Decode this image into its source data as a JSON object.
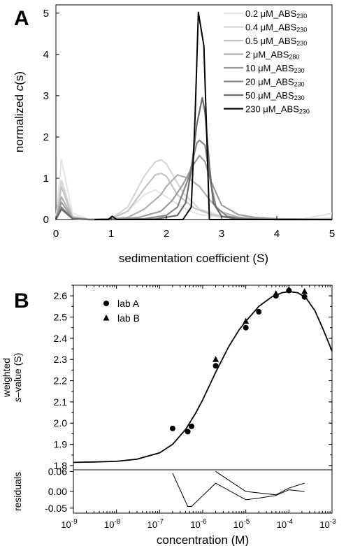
{
  "chart_data": [
    {
      "panel": "A",
      "type": "line",
      "xlabel": "sedimentation coefficient (S)",
      "ylabel_prefix": "normalized ",
      "ylabel_italic": "c",
      "ylabel_suffix": "(s)",
      "xlim": [
        0,
        5
      ],
      "ylim": [
        0,
        5.2
      ],
      "xticks": [
        "0",
        "1",
        "2",
        "3",
        "4",
        "5"
      ],
      "yticks": [
        "0",
        "1",
        "2",
        "3",
        "4",
        "5"
      ],
      "legend_position": "top-right",
      "series": [
        {
          "label_conc": "0.2 μM_ABS",
          "label_sub": "230",
          "color": "#e6e6e6",
          "x": [
            0,
            0.1,
            0.3,
            0.6,
            1.0,
            1.3,
            1.6,
            1.8,
            2.0,
            2.3,
            2.6,
            3.0,
            3.5,
            4.0,
            4.5,
            5.0
          ],
          "y": [
            0,
            1.45,
            0.15,
            0,
            0.02,
            0.2,
            0.6,
            0.72,
            0.55,
            0.28,
            0.12,
            0.05,
            0.02,
            0.01,
            0.02,
            0.15
          ]
        },
        {
          "label_conc": "0.4 μM_ABS",
          "label_sub": "230",
          "color": "#d6d6d6",
          "x": [
            0,
            0.1,
            0.3,
            0.6,
            1.0,
            1.3,
            1.6,
            1.8,
            1.9,
            2.0,
            2.3,
            2.6,
            3.0,
            3.5,
            4.0,
            4.5,
            5.0
          ],
          "y": [
            0,
            0.95,
            0.08,
            0,
            0.02,
            0.3,
            1.05,
            1.4,
            1.45,
            1.35,
            0.65,
            0.25,
            0.08,
            0.02,
            0.01,
            0.01,
            0.03
          ]
        },
        {
          "label_conc": "0.5 μM_ABS",
          "label_sub": "230",
          "color": "#c4c4c4",
          "x": [
            0,
            0.1,
            0.3,
            0.6,
            1.0,
            1.3,
            1.6,
            1.8,
            1.9,
            2.0,
            2.2,
            2.5,
            2.8,
            3.1,
            3.5,
            4.0,
            5.0
          ],
          "y": [
            0,
            0.8,
            0.05,
            0,
            0.02,
            0.2,
            0.75,
            1.08,
            1.12,
            1.05,
            0.6,
            0.28,
            0.12,
            0.04,
            0.02,
            0.01,
            0
          ]
        },
        {
          "label_conc": "2  μM_ABS",
          "label_sub": "280",
          "color": "#b0b0b0",
          "x": [
            0,
            0.1,
            0.3,
            0.6,
            1.0,
            1.3,
            1.6,
            1.9,
            2.0,
            2.2,
            2.4,
            2.6,
            2.8,
            3.0,
            3.3,
            3.6,
            4.0,
            5.0
          ],
          "y": [
            0,
            0.55,
            0.05,
            0,
            0.02,
            0.05,
            0.25,
            0.6,
            0.8,
            1.08,
            1.0,
            0.8,
            0.45,
            0.18,
            0.06,
            0.02,
            0.01,
            0
          ]
        },
        {
          "label_conc": "10  μM_ABS",
          "label_sub": "230",
          "color": "#9c9c9c",
          "x": [
            0,
            0.1,
            0.3,
            0.6,
            1.0,
            1.5,
            1.9,
            2.1,
            2.3,
            2.5,
            2.6,
            2.7,
            2.8,
            3.0,
            3.3,
            3.6,
            4.0,
            5.0
          ],
          "y": [
            0,
            0.42,
            0.03,
            0,
            0,
            0.05,
            0.2,
            0.45,
            0.85,
            1.35,
            1.55,
            1.4,
            0.95,
            0.35,
            0.12,
            0.05,
            0.02,
            0
          ]
        },
        {
          "label_conc": "20  μM_ABS",
          "label_sub": "230",
          "color": "#868686",
          "x": [
            0,
            0.1,
            0.3,
            0.6,
            1.0,
            1.6,
            2.0,
            2.2,
            2.4,
            2.55,
            2.6,
            2.7,
            2.8,
            2.9,
            3.1,
            3.4,
            4.0,
            5.0
          ],
          "y": [
            0,
            0.3,
            0.02,
            0,
            0,
            0.02,
            0.1,
            0.3,
            1.0,
            1.85,
            1.92,
            1.8,
            0.9,
            0.3,
            0.08,
            0.02,
            0,
            0
          ]
        },
        {
          "label_conc": "50  μM_ABS",
          "label_sub": "230",
          "color": "#6a6a6a",
          "x": [
            0,
            0.1,
            0.3,
            0.6,
            1.0,
            1.8,
            2.2,
            2.35,
            2.45,
            2.55,
            2.65,
            2.7,
            2.78,
            2.85,
            3.0,
            3.3,
            4.0,
            5.0
          ],
          "y": [
            0,
            0.25,
            0.02,
            0,
            0,
            0.01,
            0.1,
            0.4,
            1.2,
            2.3,
            2.95,
            2.6,
            1.3,
            0.4,
            0.08,
            0.01,
            0,
            0
          ]
        },
        {
          "label_conc": "230 μM_ABS",
          "label_sub": "230",
          "color": "#000000",
          "x": [
            0.7,
            0.95,
            1.02,
            1.1,
            1.3,
            2.3,
            2.45,
            2.52,
            2.58,
            2.68,
            2.78,
            2.9,
            3.0,
            5.0
          ],
          "y": [
            0,
            0,
            0.08,
            0,
            0,
            0,
            0.3,
            2.5,
            5.02,
            4.2,
            0,
            0,
            0,
            0
          ]
        }
      ]
    },
    {
      "panel": "B",
      "type": "scatter",
      "xlabel": "concentration (M)",
      "ylabel_line1": "weighted",
      "ylabel_line2_italic": "s",
      "ylabel_line2_rest": "–value (S)",
      "xscale": "log",
      "xlim_exp": [
        -9,
        -3
      ],
      "ylim": [
        1.78,
        2.65
      ],
      "xtick_exponents": [
        "-9",
        "-8",
        "-7",
        "-6",
        "-5",
        "-4",
        "-3"
      ],
      "xtick_base": "10",
      "yticks": [
        "1.8",
        "1.9",
        "2.0",
        "2.1",
        "2.2",
        "2.3",
        "2.4",
        "2.5",
        "2.6"
      ],
      "legend_position": "top-left",
      "series": [
        {
          "name": "lab A",
          "marker": "circle",
          "x": [
            2e-07,
            4.5e-07,
            5.5e-07,
            2e-06,
            1e-05,
            2e-05,
            5e-05,
            0.0001,
            0.00023
          ],
          "y": [
            1.975,
            1.96,
            1.985,
            2.27,
            2.45,
            2.525,
            2.6,
            2.625,
            2.595
          ]
        },
        {
          "name": "lab B",
          "marker": "triangle",
          "x": [
            2e-06,
            1e-05,
            5e-05,
            0.0001,
            0.00023
          ],
          "y": [
            2.3,
            2.48,
            2.61,
            2.63,
            2.62
          ]
        }
      ],
      "fit": {
        "x": [
          1e-09,
          3e-09,
          1e-08,
          3e-08,
          1e-07,
          2e-07,
          4e-07,
          7e-07,
          1e-06,
          2e-06,
          4e-06,
          7e-06,
          1e-05,
          2e-05,
          4e-05,
          7e-05,
          0.0001,
          0.00016,
          0.00025,
          0.0004,
          0.0006,
          0.001
        ],
        "y": [
          1.815,
          1.817,
          1.82,
          1.83,
          1.86,
          1.9,
          1.97,
          2.05,
          2.11,
          2.24,
          2.36,
          2.44,
          2.48,
          2.55,
          2.595,
          2.615,
          2.62,
          2.615,
          2.59,
          2.53,
          2.45,
          2.34
        ]
      },
      "residuals": {
        "ylabel": "residuals",
        "ylim": [
          -0.065,
          0.065
        ],
        "yticks": [
          "0.06",
          "0.00",
          "-0.05"
        ],
        "lab_A": {
          "x": [
            2e-07,
            4.5e-07,
            5.5e-07,
            2e-06,
            1e-05,
            2e-05,
            5e-05,
            0.0001,
            0.00023
          ],
          "y": [
            0.055,
            -0.045,
            -0.045,
            0.025,
            -0.025,
            -0.02,
            -0.012,
            0.005,
            0.0
          ]
        },
        "lab_B": {
          "x": [
            2e-06,
            1e-05,
            5e-05,
            0.0001,
            0.00023
          ],
          "y": [
            0.06,
            0.0,
            -0.01,
            0.01,
            0.025
          ]
        }
      }
    }
  ]
}
